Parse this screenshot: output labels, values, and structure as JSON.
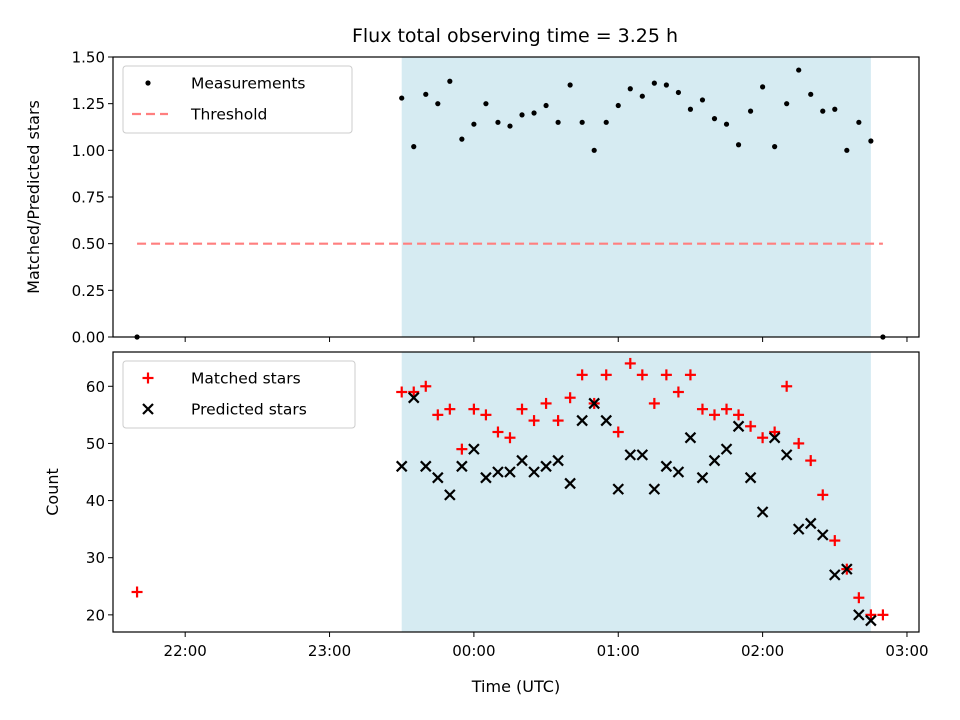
{
  "title": "Flux total observing time = 3.25 h",
  "colors": {
    "observing_span": "#add8e6",
    "measurement": "#000000",
    "threshold": "#ff7f7f",
    "matched": "#ff0000",
    "predicted": "#000000"
  },
  "chart_data": [
    {
      "type": "scatter",
      "ylabel": "Matched/Predicted stars",
      "ylim": [
        0,
        1.5
      ],
      "yticks": [
        "0.00",
        "0.25",
        "0.50",
        "0.75",
        "1.00",
        "1.25",
        "1.50"
      ],
      "x_axis": "time (UTC)",
      "xlim": [
        "21:30",
        "03:05"
      ],
      "highlight_span": [
        "23:30",
        "02:45"
      ],
      "legend": {
        "placement": "top-left",
        "entries": [
          "Measurements",
          "Threshold"
        ]
      },
      "threshold": {
        "name": "Threshold",
        "value": 0.5,
        "x_range": [
          "21:40",
          "02:50"
        ],
        "style": "dashed"
      },
      "series": [
        {
          "name": "Measurements",
          "marker": "dot",
          "x": [
            "21:40",
            "23:30",
            "23:35",
            "23:40",
            "23:45",
            "23:50",
            "23:55",
            "00:00",
            "00:05",
            "00:10",
            "00:15",
            "00:20",
            "00:25",
            "00:30",
            "00:35",
            "00:40",
            "00:45",
            "00:50",
            "00:55",
            "01:00",
            "01:05",
            "01:10",
            "01:15",
            "01:20",
            "01:25",
            "01:30",
            "01:35",
            "01:40",
            "01:45",
            "01:50",
            "01:55",
            "02:00",
            "02:05",
            "02:10",
            "02:15",
            "02:20",
            "02:25",
            "02:30",
            "02:35",
            "02:40",
            "02:45",
            "02:50"
          ],
          "y": [
            0.0,
            1.28,
            1.02,
            1.3,
            1.25,
            1.37,
            1.06,
            1.14,
            1.25,
            1.15,
            1.13,
            1.19,
            1.2,
            1.24,
            1.15,
            1.35,
            1.15,
            1.0,
            1.15,
            1.24,
            1.33,
            1.29,
            1.36,
            1.35,
            1.31,
            1.22,
            1.27,
            1.17,
            1.14,
            1.03,
            1.21,
            1.34,
            1.02,
            1.25,
            1.43,
            1.3,
            1.21,
            1.22,
            1.0,
            1.15,
            1.05,
            0.0
          ]
        }
      ]
    },
    {
      "type": "scatter",
      "xlabel": "Time (UTC)",
      "ylabel": "Count",
      "ylim": [
        17,
        66
      ],
      "yticks": [
        "20",
        "30",
        "40",
        "50",
        "60"
      ],
      "xticks": [
        "22:00",
        "23:00",
        "00:00",
        "01:00",
        "02:00",
        "03:00"
      ],
      "xlim": [
        "21:30",
        "03:05"
      ],
      "highlight_span": [
        "23:30",
        "02:45"
      ],
      "legend": {
        "placement": "top-left",
        "entries": [
          "Matched stars",
          "Predicted stars"
        ]
      },
      "series": [
        {
          "name": "Matched stars",
          "marker": "plus",
          "x": [
            "21:40",
            "23:30",
            "23:35",
            "23:40",
            "23:45",
            "23:50",
            "23:55",
            "00:00",
            "00:05",
            "00:10",
            "00:15",
            "00:20",
            "00:25",
            "00:30",
            "00:35",
            "00:40",
            "00:45",
            "00:50",
            "00:55",
            "01:00",
            "01:05",
            "01:10",
            "01:15",
            "01:20",
            "01:25",
            "01:30",
            "01:35",
            "01:40",
            "01:45",
            "01:50",
            "01:55",
            "02:00",
            "02:05",
            "02:10",
            "02:15",
            "02:20",
            "02:25",
            "02:30",
            "02:35",
            "02:40",
            "02:45",
            "02:50"
          ],
          "y": [
            24,
            59,
            59,
            60,
            55,
            56,
            49,
            56,
            55,
            52,
            51,
            56,
            54,
            57,
            54,
            58,
            62,
            57,
            62,
            52,
            64,
            62,
            57,
            62,
            59,
            62,
            56,
            55,
            56,
            55,
            53,
            51,
            52,
            60,
            50,
            47,
            41,
            33,
            28,
            23,
            20,
            20
          ]
        },
        {
          "name": "Predicted stars",
          "marker": "x",
          "x": [
            "23:30",
            "23:35",
            "23:40",
            "23:45",
            "23:50",
            "23:55",
            "00:00",
            "00:05",
            "00:10",
            "00:15",
            "00:20",
            "00:25",
            "00:30",
            "00:35",
            "00:40",
            "00:45",
            "00:50",
            "00:55",
            "01:00",
            "01:05",
            "01:10",
            "01:15",
            "01:20",
            "01:25",
            "01:30",
            "01:35",
            "01:40",
            "01:45",
            "01:50",
            "01:55",
            "02:00",
            "02:05",
            "02:10",
            "02:15",
            "02:20",
            "02:25",
            "02:30",
            "02:35",
            "02:40",
            "02:45"
          ],
          "y": [
            46,
            58,
            46,
            44,
            41,
            46,
            49,
            44,
            45,
            45,
            47,
            45,
            46,
            47,
            43,
            54,
            57,
            54,
            42,
            48,
            48,
            42,
            46,
            45,
            51,
            44,
            47,
            49,
            53,
            44,
            38,
            51,
            48,
            35,
            36,
            34,
            27,
            28,
            20,
            19
          ]
        }
      ]
    }
  ]
}
